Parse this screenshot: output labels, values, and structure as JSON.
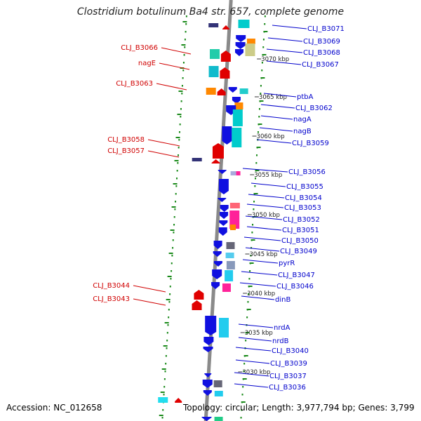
{
  "title": "Clostridium botulinum Ba4 str. 657, complete genome",
  "footer": {
    "accession": "Accession: NC_012658",
    "topology": "Topology: circular; Length: 3,977,794 bp; Genes: 3,799"
  },
  "colors": {
    "backbone": "#8a8a8a",
    "ruler": "#1a8a1a",
    "forward_gene": "#e00000",
    "reverse_gene": "#1010e0",
    "left_label": "#d00000",
    "right_label": "#0000cc"
  },
  "kbp_markers": [
    "3070 kbp",
    "3065 kbp",
    "3060 kbp",
    "3055 kbp",
    "3050 kbp",
    "3045 kbp",
    "3040 kbp",
    "3035 kbp",
    "3030 kbp"
  ],
  "left_labels": [
    "CLJ_B3066",
    "nagE",
    "CLJ_B3063",
    "CLJ_B3058",
    "CLJ_B3057",
    "CLJ_B3044",
    "CLJ_B3043"
  ],
  "right_labels": [
    "CLJ_B3071",
    "CLJ_B3069",
    "CLJ_B3068",
    "CLJ_B3067",
    "ptbA",
    "CLJ_B3062",
    "nagA",
    "nagB",
    "CLJ_B3059",
    "CLJ_B3056",
    "CLJ_B3055",
    "CLJ_B3054",
    "CLJ_B3053",
    "CLJ_B3052",
    "CLJ_B3051",
    "CLJ_B3050",
    "CLJ_B3049",
    "pyrR",
    "CLJ_B3047",
    "CLJ_B3046",
    "dinB",
    "nrdA",
    "nrdB",
    "CLJ_B3040",
    "CLJ_B3039",
    "CLJ_B3037",
    "CLJ_B3036"
  ]
}
